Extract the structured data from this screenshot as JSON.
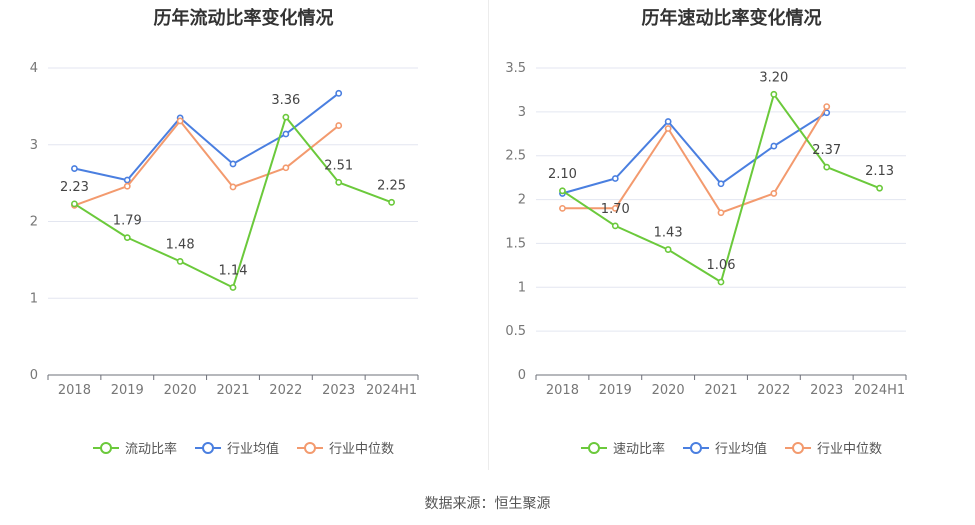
{
  "source_label": "数据来源：恒生聚源",
  "chart_data": [
    {
      "type": "line",
      "title": "历年流动比率变化情况",
      "categories": [
        "2018",
        "2019",
        "2020",
        "2021",
        "2022",
        "2023",
        "2024H1"
      ],
      "ylim": [
        0,
        4
      ],
      "yticks": [
        0,
        1,
        2,
        3,
        4
      ],
      "grid": true,
      "legend_position": "bottom",
      "series": [
        {
          "name": "流动比率",
          "color": "#6bc93b",
          "labeled": true,
          "values": [
            2.23,
            1.79,
            1.48,
            1.14,
            3.36,
            2.51,
            2.25
          ]
        },
        {
          "name": "行业均值",
          "color": "#4a7fe0",
          "labeled": false,
          "values": [
            2.69,
            2.54,
            3.35,
            2.75,
            3.14,
            3.67,
            null
          ]
        },
        {
          "name": "行业中位数",
          "color": "#f39a6e",
          "labeled": false,
          "values": [
            2.21,
            2.46,
            3.31,
            2.45,
            2.7,
            3.25,
            null
          ]
        }
      ]
    },
    {
      "type": "line",
      "title": "历年速动比率变化情况",
      "categories": [
        "2018",
        "2019",
        "2020",
        "2021",
        "2022",
        "2023",
        "2024H1"
      ],
      "ylim": [
        0,
        3.5
      ],
      "yticks": [
        0,
        0.5,
        1,
        1.5,
        2,
        2.5,
        3,
        3.5
      ],
      "grid": true,
      "legend_position": "bottom",
      "series": [
        {
          "name": "速动比率",
          "color": "#6bc93b",
          "labeled": true,
          "values": [
            2.1,
            1.7,
            1.43,
            1.06,
            3.2,
            2.37,
            2.13
          ]
        },
        {
          "name": "行业均值",
          "color": "#4a7fe0",
          "labeled": false,
          "values": [
            2.07,
            2.24,
            2.89,
            2.18,
            2.61,
            2.99,
            null
          ]
        },
        {
          "name": "行业中位数",
          "color": "#f39a6e",
          "labeled": false,
          "values": [
            1.9,
            1.9,
            2.81,
            1.85,
            2.07,
            3.06,
            null
          ]
        }
      ]
    }
  ]
}
